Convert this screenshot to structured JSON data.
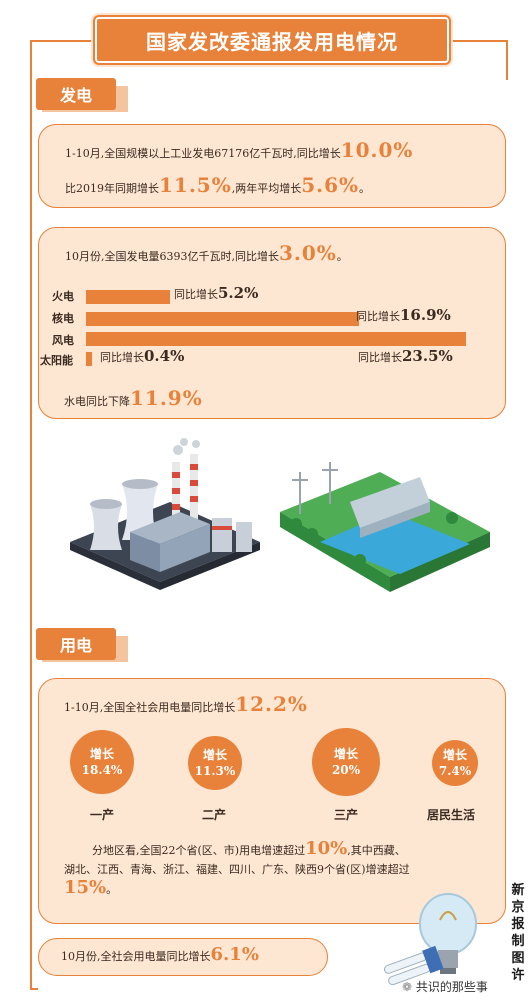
{
  "title": "国家发改委通报发用电情况",
  "colors": {
    "accent": "#e8823a",
    "card_bg": "#fde6d2"
  },
  "section_generation": {
    "tab": "发电",
    "card1": {
      "line1_text": "1-10月,全国规模以上工业发电67176亿千瓦时,同比增长",
      "line1_value": "10.0%",
      "line2_text_a": "比2019年同期增长",
      "line2_value_a": "11.5%",
      "line2_text_b": ",两年平均增长",
      "line2_value_b": "5.6%",
      "line2_tail": "。"
    },
    "card2": {
      "line1_text": "10月份,全国发电量6393亿千瓦时,同比增长",
      "line1_value": "3.0%",
      "line1_tail": "。",
      "bars": [
        {
          "name": "火电",
          "prefix": "同比增长",
          "value": 5.2,
          "value_text": "5.2%"
        },
        {
          "name": "核电",
          "prefix": "同比增长",
          "value": 16.9,
          "value_text": "16.9%"
        },
        {
          "name": "风电",
          "prefix": "同比增长",
          "value": 23.5,
          "value_text": "23.5%"
        },
        {
          "name": "太阳能",
          "prefix": "同比增长",
          "value": 0.4,
          "value_text": "0.4%"
        }
      ],
      "hydro_text": "水电同比下降",
      "hydro_value": "11.9%"
    }
  },
  "section_consumption": {
    "tab": "用电",
    "line1_text": "1-10月,全国全社会用电量同比增长",
    "line1_value": "12.2%",
    "circles": [
      {
        "label": "一产",
        "head": "增长",
        "value": "18.4%"
      },
      {
        "label": "二产",
        "head": "增长",
        "value": "11.3%"
      },
      {
        "label": "三产",
        "head": "增长",
        "value": "20%"
      },
      {
        "label": "居民生活",
        "head": "增长",
        "value": "7.4%"
      }
    ],
    "region_line1_a": "分地区看,全国22个省(区、市)用电增速超过",
    "region_value1": "10%",
    "region_line1_b": ",其中西藏、",
    "region_line2": "湖北、江西、青海、浙江、福建、四川、广东、陕西9个省(区)增速超过",
    "region_value2": "15%",
    "region_tail": "。",
    "oct_text": "10月份,全社会用电量同比增长",
    "oct_value": "6.1%"
  },
  "credit": "新京报制图许",
  "wechat": "共识的那些事"
}
